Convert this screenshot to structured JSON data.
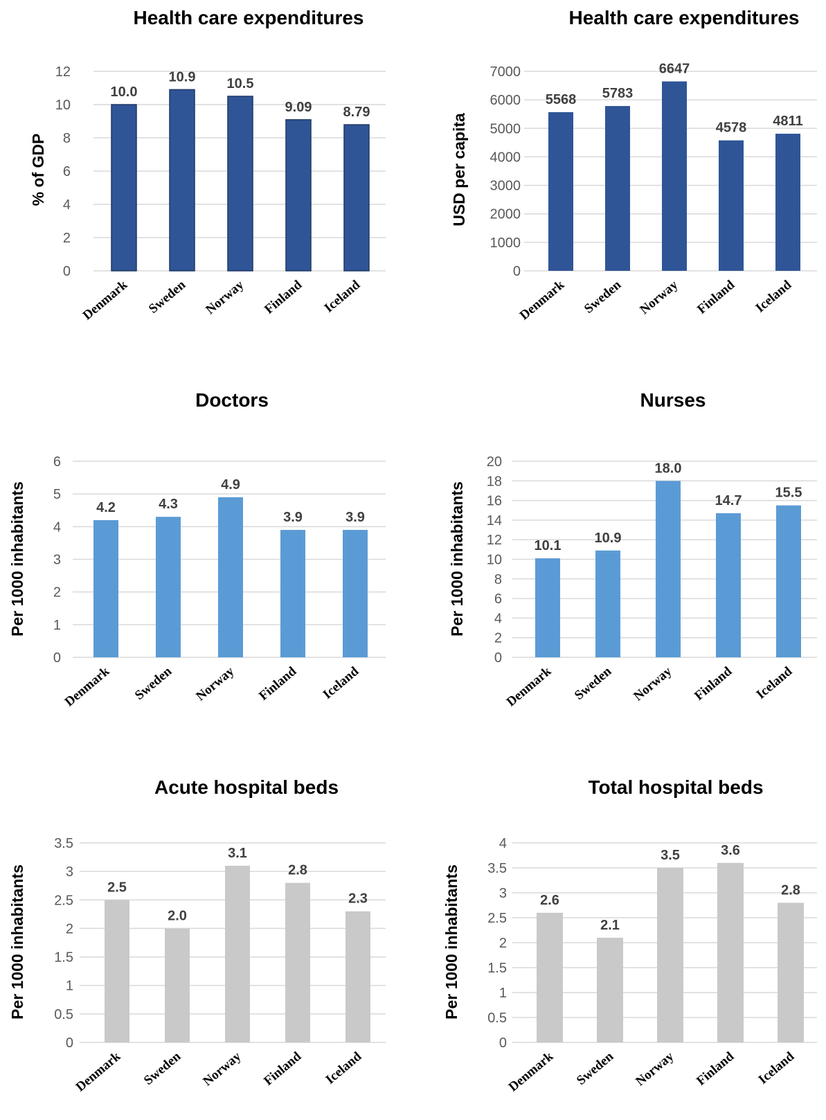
{
  "chart_data": [
    {
      "type": "bar",
      "title": "Health care expenditures",
      "ylabel": "% of GDP",
      "categories": [
        "Denmark",
        "Sweden",
        "Norway",
        "Finland",
        "Iceland"
      ],
      "values": [
        10.0,
        10.9,
        10.5,
        9.09,
        8.79
      ],
      "value_labels": [
        "10.0",
        "10.9",
        "10.5",
        "9.09",
        "8.79"
      ],
      "ylim": [
        0,
        12
      ],
      "yticks": [
        "0",
        "2",
        "4",
        "6",
        "8",
        "10",
        "12"
      ],
      "color": "#2f5597",
      "bar_border": "#1f3864",
      "grid": true
    },
    {
      "type": "bar",
      "title": "Health care expenditures",
      "ylabel": "USD per capita",
      "categories": [
        "Denmark",
        "Sweden",
        "Norway",
        "Finland",
        "Iceland"
      ],
      "values": [
        5568,
        5783,
        6647,
        4578,
        4811
      ],
      "value_labels": [
        "5568",
        "5783",
        "6647",
        "4578",
        "4811"
      ],
      "ylim": [
        0,
        7000
      ],
      "yticks": [
        "0",
        "1000",
        "2000",
        "3000",
        "4000",
        "5000",
        "6000",
        "7000"
      ],
      "color": "#2f5597",
      "grid": true
    },
    {
      "type": "bar",
      "title": "Doctors",
      "ylabel": "Per 1000 inhabitants",
      "categories": [
        "Denmark",
        "Sweden",
        "Norway",
        "Finland",
        "Iceland"
      ],
      "values": [
        4.2,
        4.3,
        4.9,
        3.9,
        3.9
      ],
      "value_labels": [
        "4.2",
        "4.3",
        "4.9",
        "3.9",
        "3.9"
      ],
      "ylim": [
        0,
        6
      ],
      "yticks": [
        "0",
        "1",
        "2",
        "3",
        "4",
        "5",
        "6"
      ],
      "color": "#5b9bd5",
      "grid": true
    },
    {
      "type": "bar",
      "title": "Nurses",
      "ylabel": "Per 1000 inhabitants",
      "categories": [
        "Denmark",
        "Sweden",
        "Norway",
        "Finland",
        "Iceland"
      ],
      "values": [
        10.1,
        10.9,
        18.0,
        14.7,
        15.5
      ],
      "value_labels": [
        "10.1",
        "10.9",
        "18.0",
        "14.7",
        "15.5"
      ],
      "ylim": [
        0,
        20
      ],
      "yticks": [
        "0",
        "2",
        "4",
        "6",
        "8",
        "10",
        "12",
        "14",
        "16",
        "18",
        "20"
      ],
      "color": "#5b9bd5",
      "grid": true
    },
    {
      "type": "bar",
      "title": "Acute hospital beds",
      "ylabel": "Per 1000 inhabitants",
      "categories": [
        "Denmark",
        "Sweden",
        "Norway",
        "Finland",
        "Iceland"
      ],
      "values": [
        2.5,
        2.0,
        3.1,
        2.8,
        2.3
      ],
      "value_labels": [
        "2.5",
        "2.0",
        "3.1",
        "2.8",
        "2.3"
      ],
      "ylim": [
        0,
        3.5
      ],
      "yticks": [
        "0",
        "0.5",
        "1",
        "1.5",
        "2",
        "2.5",
        "3",
        "3.5"
      ],
      "color": "#c9c9c9",
      "grid": true
    },
    {
      "type": "bar",
      "title": "Total hospital beds",
      "ylabel": "Per 1000 inhabitants",
      "categories": [
        "Denmark",
        "Sweden",
        "Norway",
        "Finland",
        "Iceland"
      ],
      "values": [
        2.6,
        2.1,
        3.5,
        3.6,
        2.8
      ],
      "value_labels": [
        "2.6",
        "2.1",
        "3.5",
        "3.6",
        "2.8"
      ],
      "ylim": [
        0,
        4
      ],
      "yticks": [
        "0",
        "0.5",
        "1",
        "1.5",
        "2",
        "2.5",
        "3",
        "3.5",
        "4"
      ],
      "color": "#c9c9c9",
      "grid": true
    }
  ]
}
